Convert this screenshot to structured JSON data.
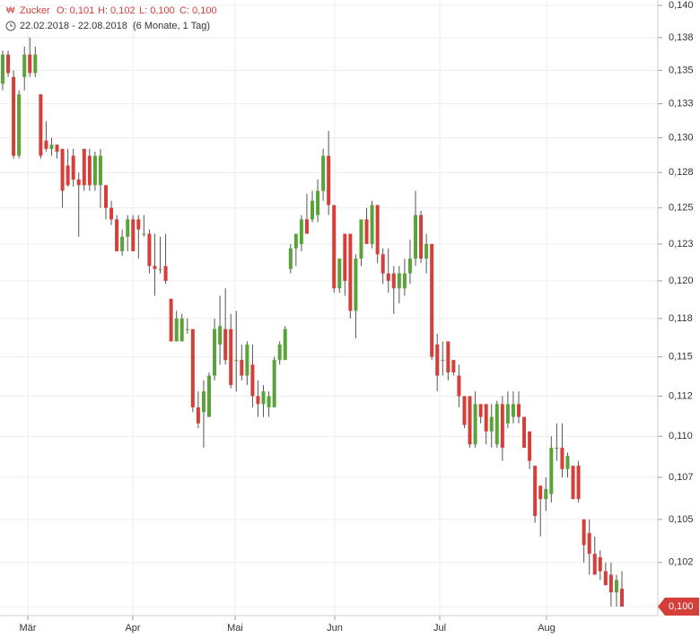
{
  "chart_data": {
    "type": "candlestick",
    "legend": {
      "name": "Zucker",
      "items": [
        "O: 0,101",
        "H: 0,102",
        "L: 0,100",
        "C: 0,100"
      ],
      "range": "22.02.2018 - 22.08.2018",
      "period": "(6 Monate, 1 Tag)"
    },
    "months": [
      "Mär",
      "Apr",
      "Mai",
      "Jun",
      "Jul",
      "Aug"
    ],
    "log_scale": true,
    "grid": true,
    "up_color": "#5aa33a",
    "down_color": "#d43f3a",
    "ylim": [
      0.1,
      0.14
    ],
    "yticks": [
      {
        "value": 0.14,
        "label": "0,140"
      },
      {
        "value": 0.1375,
        "label": "0,138"
      },
      {
        "value": 0.135,
        "label": "0,135"
      },
      {
        "value": 0.1325,
        "label": "0,133"
      },
      {
        "value": 0.13,
        "label": "0,130"
      },
      {
        "value": 0.1275,
        "label": "0,128"
      },
      {
        "value": 0.125,
        "label": "0,125"
      },
      {
        "value": 0.1225,
        "label": "0,123"
      },
      {
        "value": 0.12,
        "label": "0,120"
      },
      {
        "value": 0.1175,
        "label": "0,118"
      },
      {
        "value": 0.115,
        "label": "0,115"
      },
      {
        "value": 0.1125,
        "label": "0,112"
      },
      {
        "value": 0.11,
        "label": "0,110"
      },
      {
        "value": 0.1075,
        "label": "0,107"
      },
      {
        "value": 0.105,
        "label": "0,105"
      },
      {
        "value": 0.1025,
        "label": "0,102"
      },
      {
        "value": 0.1,
        "label": "0,100"
      }
    ],
    "last_price": {
      "value": 0.1,
      "label": "0,100"
    },
    "open": [
      0.134,
      0.1362,
      0.1345,
      0.1287,
      0.1345,
      0.1362,
      0.1348,
      0.1332,
      0.1298,
      0.1292,
      0.1295,
      0.1292,
      0.128,
      0.1287,
      0.127,
      0.1292,
      0.1287,
      0.1266,
      0.1266,
      0.1266,
      0.125,
      0.1242,
      0.122,
      0.123,
      0.1242,
      0.1242,
      0.1232,
      0.1232,
      0.121,
      0.1208,
      0.121,
      0.1188,
      0.116,
      0.116,
      0.1168,
      0.1168,
      0.1118,
      0.1115,
      0.1112,
      0.1138,
      0.1158,
      0.1168,
      0.1168,
      0.1148,
      0.1148,
      0.1138,
      0.1145,
      0.1125,
      0.112,
      0.1118,
      0.1118,
      0.1148,
      0.1148,
      0.1208,
      0.1222,
      0.1225,
      0.1242,
      0.1242,
      0.1245,
      0.1262,
      0.1287,
      0.1252,
      0.1195,
      0.1232,
      0.1232,
      0.118,
      0.1215,
      0.1242,
      0.1225,
      0.1252,
      0.1218,
      0.1205,
      0.1205,
      0.1195,
      0.1195,
      0.1205,
      0.1215,
      0.1245,
      0.1215,
      0.1225,
      0.1158,
      0.1148,
      0.116,
      0.1148,
      0.1138,
      0.1125,
      0.1125,
      0.1095,
      0.112,
      0.112,
      0.1103,
      0.1095,
      0.112,
      0.1108,
      0.1112,
      0.112,
      0.1112,
      0.1103,
      0.1082,
      0.107,
      0.1062,
      0.1065,
      0.1093,
      0.1093,
      0.108,
      0.1082,
      0.1082,
      0.105,
      0.1042,
      0.103,
      0.1028,
      0.102,
      0.1018,
      0.1008,
      0.101
    ],
    "high": [
      0.1365,
      0.1365,
      0.135,
      0.1335,
      0.1368,
      0.1375,
      0.1368,
      0.1332,
      0.1312,
      0.13,
      0.1295,
      0.1292,
      0.1292,
      0.1292,
      0.1275,
      0.1292,
      0.1292,
      0.129,
      0.1292,
      0.1266,
      0.1255,
      0.1245,
      0.1235,
      0.1245,
      0.1245,
      0.1245,
      0.1245,
      0.1235,
      0.1232,
      0.123,
      0.1232,
      0.1188,
      0.118,
      0.1178,
      0.1175,
      0.1168,
      0.1128,
      0.1135,
      0.114,
      0.1175,
      0.119,
      0.1195,
      0.1178,
      0.118,
      0.1158,
      0.116,
      0.1158,
      0.1135,
      0.1132,
      0.1128,
      0.115,
      0.116,
      0.117,
      0.1225,
      0.1232,
      0.1245,
      0.126,
      0.1262,
      0.127,
      0.1292,
      0.1305,
      0.1252,
      0.1215,
      0.1232,
      0.1232,
      0.1218,
      0.1242,
      0.125,
      0.1255,
      0.1252,
      0.1222,
      0.1222,
      0.121,
      0.121,
      0.1215,
      0.1228,
      0.1262,
      0.1248,
      0.1232,
      0.1225,
      0.1165,
      0.116,
      0.116,
      0.1148,
      0.1145,
      0.1125,
      0.1125,
      0.1128,
      0.112,
      0.112,
      0.112,
      0.1122,
      0.1125,
      0.1128,
      0.1128,
      0.1128,
      0.1112,
      0.1103,
      0.1082,
      0.107,
      0.1075,
      0.11,
      0.1108,
      0.1108,
      0.109,
      0.1082,
      0.1085,
      0.105,
      0.105,
      0.104,
      0.1032,
      0.1025,
      0.1025,
      0.1018,
      0.102
    ],
    "low": [
      0.1335,
      0.1345,
      0.1285,
      0.1285,
      0.1335,
      0.1345,
      0.1345,
      0.1285,
      0.129,
      0.1287,
      0.1285,
      0.125,
      0.1265,
      0.1265,
      0.123,
      0.1262,
      0.1262,
      0.1262,
      0.125,
      0.1242,
      0.1238,
      0.122,
      0.1217,
      0.122,
      0.122,
      0.1215,
      0.123,
      0.1205,
      0.119,
      0.1205,
      0.1198,
      0.116,
      0.116,
      0.116,
      0.1165,
      0.1115,
      0.1105,
      0.1093,
      0.1112,
      0.1135,
      0.1145,
      0.1145,
      0.113,
      0.1128,
      0.1135,
      0.1132,
      0.1118,
      0.1112,
      0.1112,
      0.1112,
      0.1118,
      0.1145,
      0.1148,
      0.1205,
      0.121,
      0.122,
      0.1232,
      0.124,
      0.124,
      0.1255,
      0.1245,
      0.1192,
      0.1192,
      0.119,
      0.1175,
      0.1162,
      0.121,
      0.1225,
      0.1222,
      0.1212,
      0.1198,
      0.1192,
      0.1178,
      0.1185,
      0.119,
      0.1198,
      0.121,
      0.1212,
      0.1205,
      0.1148,
      0.1128,
      0.1138,
      0.1135,
      0.1138,
      0.1118,
      0.1105,
      0.1093,
      0.1093,
      0.1108,
      0.1095,
      0.1093,
      0.1093,
      0.1085,
      0.1105,
      0.1108,
      0.1108,
      0.1093,
      0.108,
      0.1048,
      0.104,
      0.1055,
      0.106,
      0.1085,
      0.1075,
      0.1075,
      0.1062,
      0.106,
      0.1025,
      0.1018,
      0.102,
      0.1015,
      0.1012,
      0.1,
      0.1,
      0.1
    ],
    "close": [
      0.1362,
      0.1348,
      0.1287,
      0.1332,
      0.1362,
      0.1348,
      0.1362,
      0.1287,
      0.1292,
      0.1295,
      0.129,
      0.1262,
      0.1266,
      0.127,
      0.1266,
      0.1266,
      0.1266,
      0.1287,
      0.1287,
      0.125,
      0.1242,
      0.122,
      0.123,
      0.1242,
      0.122,
      0.1235,
      0.1232,
      0.121,
      0.1208,
      0.1208,
      0.12,
      0.116,
      0.1175,
      0.1175,
      0.1168,
      0.1118,
      0.1108,
      0.1128,
      0.1138,
      0.1168,
      0.117,
      0.1148,
      0.1132,
      0.1148,
      0.1138,
      0.1158,
      0.1125,
      0.112,
      0.1128,
      0.1125,
      0.1148,
      0.1158,
      0.1168,
      0.1222,
      0.1232,
      0.1242,
      0.1232,
      0.1255,
      0.1262,
      0.1287,
      0.1252,
      0.1195,
      0.1215,
      0.12,
      0.118,
      0.1215,
      0.1242,
      0.1225,
      0.1252,
      0.1218,
      0.1205,
      0.12,
      0.1195,
      0.1205,
      0.1205,
      0.1215,
      0.1245,
      0.1215,
      0.1225,
      0.115,
      0.1138,
      0.1148,
      0.114,
      0.114,
      0.1125,
      0.1107,
      0.1095,
      0.112,
      0.1112,
      0.1103,
      0.1112,
      0.112,
      0.1093,
      0.112,
      0.112,
      0.1112,
      0.1093,
      0.1085,
      0.1052,
      0.1062,
      0.1068,
      0.1093,
      0.1093,
      0.108,
      0.1088,
      0.1062,
      0.1062,
      0.1035,
      0.103,
      0.1018,
      0.102,
      0.1012,
      0.1008,
      0.1015,
      0.1
    ]
  }
}
